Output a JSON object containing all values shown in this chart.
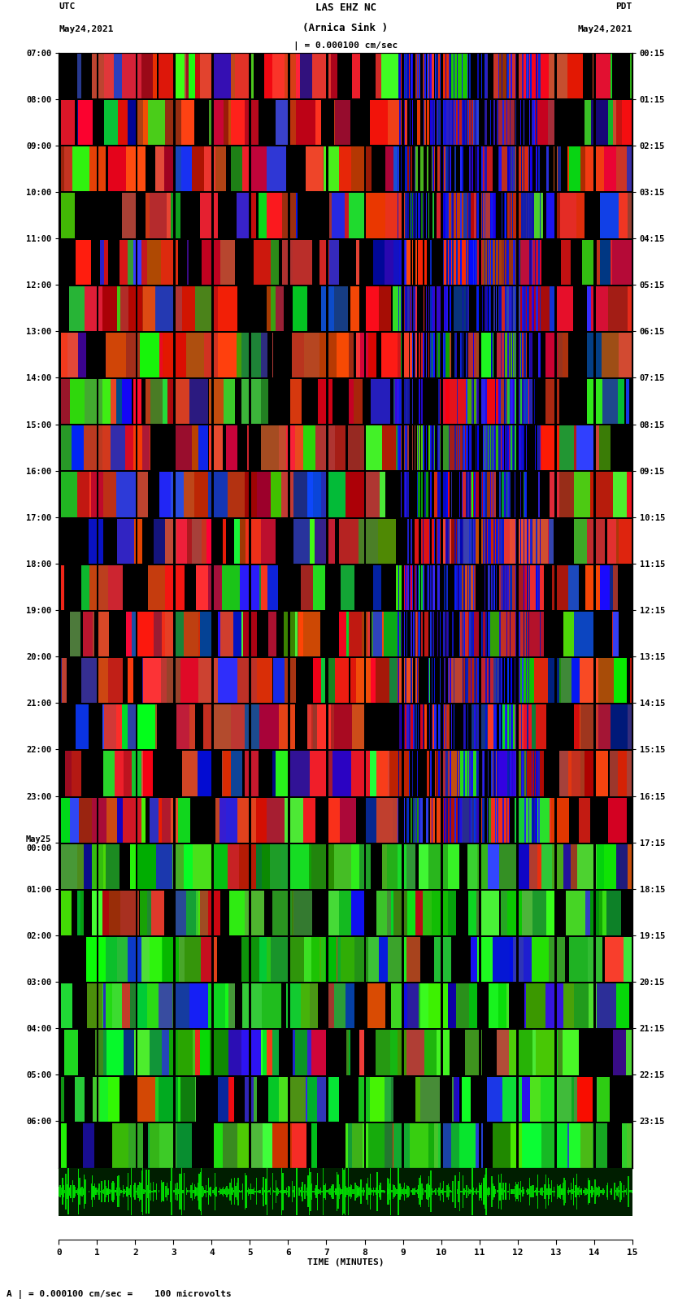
{
  "title_line1": "LAS EHZ NC",
  "title_line2": "(Arnica Sink )",
  "title_line3": "| = 0.000100 cm/sec",
  "utc_label": "UTC",
  "utc_date": "May24,2021",
  "pdt_label": "PDT",
  "pdt_date": "May24,2021",
  "bottom_label": "TIME (MINUTES)",
  "bottom_scale": "A | = 0.000100 cm/sec =    100 microvolts",
  "left_times": [
    "07:00",
    "08:00",
    "09:00",
    "10:00",
    "11:00",
    "12:00",
    "13:00",
    "14:00",
    "15:00",
    "16:00",
    "17:00",
    "18:00",
    "19:00",
    "20:00",
    "21:00",
    "22:00",
    "23:00",
    "May25\n00:00",
    "01:00",
    "02:00",
    "03:00",
    "04:00",
    "05:00",
    "06:00"
  ],
  "right_times": [
    "00:15",
    "01:15",
    "02:15",
    "03:15",
    "04:15",
    "05:15",
    "06:15",
    "07:15",
    "08:15",
    "09:15",
    "10:15",
    "11:15",
    "12:15",
    "13:15",
    "14:15",
    "15:15",
    "16:15",
    "17:15",
    "18:15",
    "19:15",
    "20:15",
    "21:15",
    "22:15",
    "23:15"
  ],
  "bg_color": "#ffffff",
  "n_time_rows": 24,
  "n_cols": 500,
  "font_family": "monospace",
  "font_size_labels": 7.5,
  "font_size_title": 9,
  "font_size_bottom": 8
}
